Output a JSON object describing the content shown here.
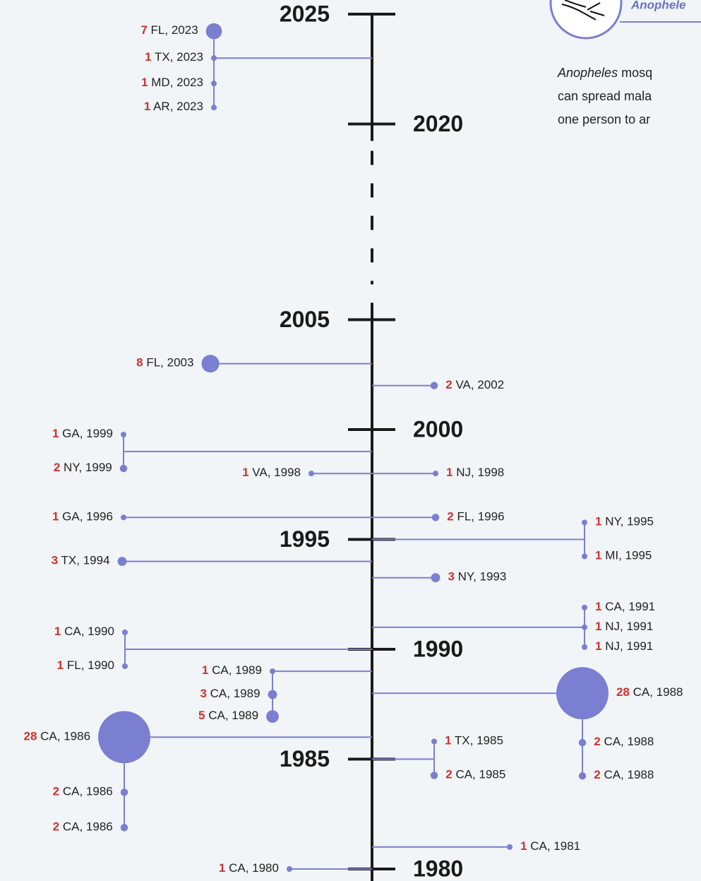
{
  "chart_data": {
    "type": "timeline",
    "ticks": [
      2025,
      2020,
      2005,
      2000,
      1995,
      1990,
      1985,
      1980
    ],
    "color": "#7b7fd1",
    "count_color": "#d32f2f",
    "legend_title": "Anophele",
    "description": {
      "italic": "Anopheles",
      "lines": [
        " mosq",
        "can spread mala",
        "one person to ar"
      ]
    },
    "events": [
      {
        "year": 2023,
        "side": "left",
        "items": [
          {
            "count": 7,
            "label": "FL, 2023"
          },
          {
            "count": 1,
            "label": "TX, 2023"
          },
          {
            "count": 1,
            "label": "MD, 2023"
          },
          {
            "count": 1,
            "label": "AR, 2023"
          }
        ]
      },
      {
        "year": 2003,
        "side": "left",
        "items": [
          {
            "count": 8,
            "label": "FL, 2003"
          }
        ]
      },
      {
        "year": 2002,
        "side": "right",
        "items": [
          {
            "count": 2,
            "label": "VA, 2002"
          }
        ]
      },
      {
        "year": 1999,
        "side": "left",
        "items": [
          {
            "count": 1,
            "label": "GA, 1999"
          },
          {
            "count": 2,
            "label": "NY, 1999"
          }
        ]
      },
      {
        "year": 1998,
        "side": "left",
        "items": [
          {
            "count": 1,
            "label": "VA, 1998"
          }
        ]
      },
      {
        "year": 1998,
        "side": "right",
        "items": [
          {
            "count": 1,
            "label": "NJ, 1998"
          }
        ]
      },
      {
        "year": 1996,
        "side": "left",
        "items": [
          {
            "count": 1,
            "label": "GA, 1996"
          }
        ]
      },
      {
        "year": 1996,
        "side": "right",
        "items": [
          {
            "count": 2,
            "label": "FL, 1996"
          }
        ]
      },
      {
        "year": 1995,
        "side": "right",
        "items": [
          {
            "count": 1,
            "label": "NY, 1995"
          },
          {
            "count": 1,
            "label": "MI, 1995"
          }
        ]
      },
      {
        "year": 1994,
        "side": "left",
        "items": [
          {
            "count": 3,
            "label": "TX, 1994"
          }
        ]
      },
      {
        "year": 1993,
        "side": "right",
        "items": [
          {
            "count": 3,
            "label": "NY, 1993"
          }
        ]
      },
      {
        "year": 1991,
        "side": "right",
        "items": [
          {
            "count": 1,
            "label": "CA, 1991"
          },
          {
            "count": 1,
            "label": "NJ, 1991"
          },
          {
            "count": 1,
            "label": "NJ, 1991"
          }
        ]
      },
      {
        "year": 1990,
        "side": "left",
        "items": [
          {
            "count": 1,
            "label": "CA, 1990"
          },
          {
            "count": 1,
            "label": "FL, 1990"
          }
        ]
      },
      {
        "year": 1989,
        "side": "left",
        "items": [
          {
            "count": 1,
            "label": "CA, 1989"
          },
          {
            "count": 3,
            "label": "CA, 1989"
          },
          {
            "count": 5,
            "label": "CA, 1989"
          }
        ]
      },
      {
        "year": 1988,
        "side": "right",
        "items": [
          {
            "count": 28,
            "label": "CA, 1988"
          },
          {
            "count": 2,
            "label": "CA, 1988"
          },
          {
            "count": 2,
            "label": "CA, 1988"
          }
        ]
      },
      {
        "year": 1986,
        "side": "left",
        "items": [
          {
            "count": 28,
            "label": "CA, 1986"
          },
          {
            "count": 2,
            "label": "CA, 1986"
          },
          {
            "count": 2,
            "label": "CA, 1986"
          }
        ]
      },
      {
        "year": 1985,
        "side": "right",
        "items": [
          {
            "count": 1,
            "label": "TX, 1985"
          },
          {
            "count": 2,
            "label": "CA, 1985"
          }
        ]
      },
      {
        "year": 1981,
        "side": "right",
        "items": [
          {
            "count": 1,
            "label": "CA, 1981"
          }
        ]
      },
      {
        "year": 1980,
        "side": "left",
        "items": [
          {
            "count": 1,
            "label": "CA, 1980"
          }
        ]
      }
    ]
  }
}
